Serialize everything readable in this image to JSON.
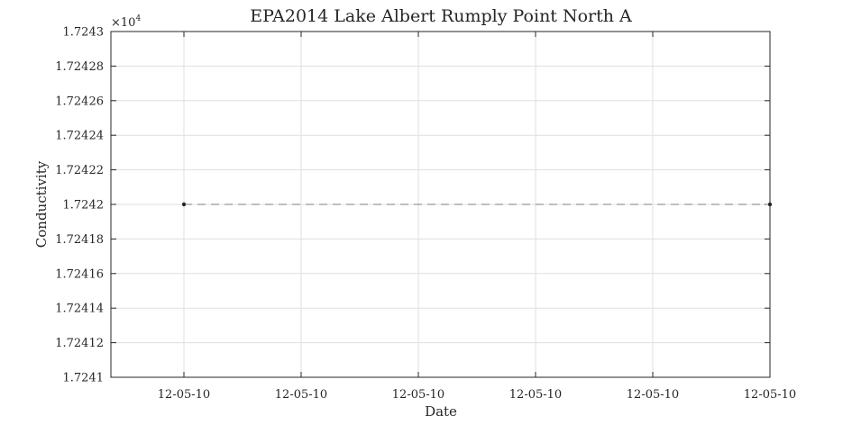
{
  "chart_data": {
    "type": "line",
    "title": "EPA2014 Lake Albert Rumply Point North A",
    "xlabel": "Date",
    "ylabel": "Conductivity",
    "y_exponent_label": "×10",
    "y_exponent_power": "4",
    "ylim": [
      1.7241,
      1.7243
    ],
    "y_ticks": [
      1.7241,
      1.72412,
      1.72414,
      1.72416,
      1.72418,
      1.7242,
      1.72422,
      1.72424,
      1.72426,
      1.72428,
      1.7243
    ],
    "y_tick_labels": [
      "1.7241",
      "1.72412",
      "1.72414",
      "1.72416",
      "1.72418",
      "1.7242",
      "1.72422",
      "1.72424",
      "1.72426",
      "1.72428",
      "1.7243"
    ],
    "x_tick_labels": [
      "12-05-10",
      "12-05-10",
      "12-05-10",
      "12-05-10",
      "12-05-10",
      "12-05-10"
    ],
    "grid": true,
    "series": [
      {
        "line_style": "dashed",
        "color": "#7f7f7f",
        "marker_color": "#262626",
        "points": [
          {
            "x": "12-05-10",
            "y": 1.7242
          },
          {
            "x": "12-05-10",
            "y": 1.7242
          }
        ]
      }
    ]
  }
}
